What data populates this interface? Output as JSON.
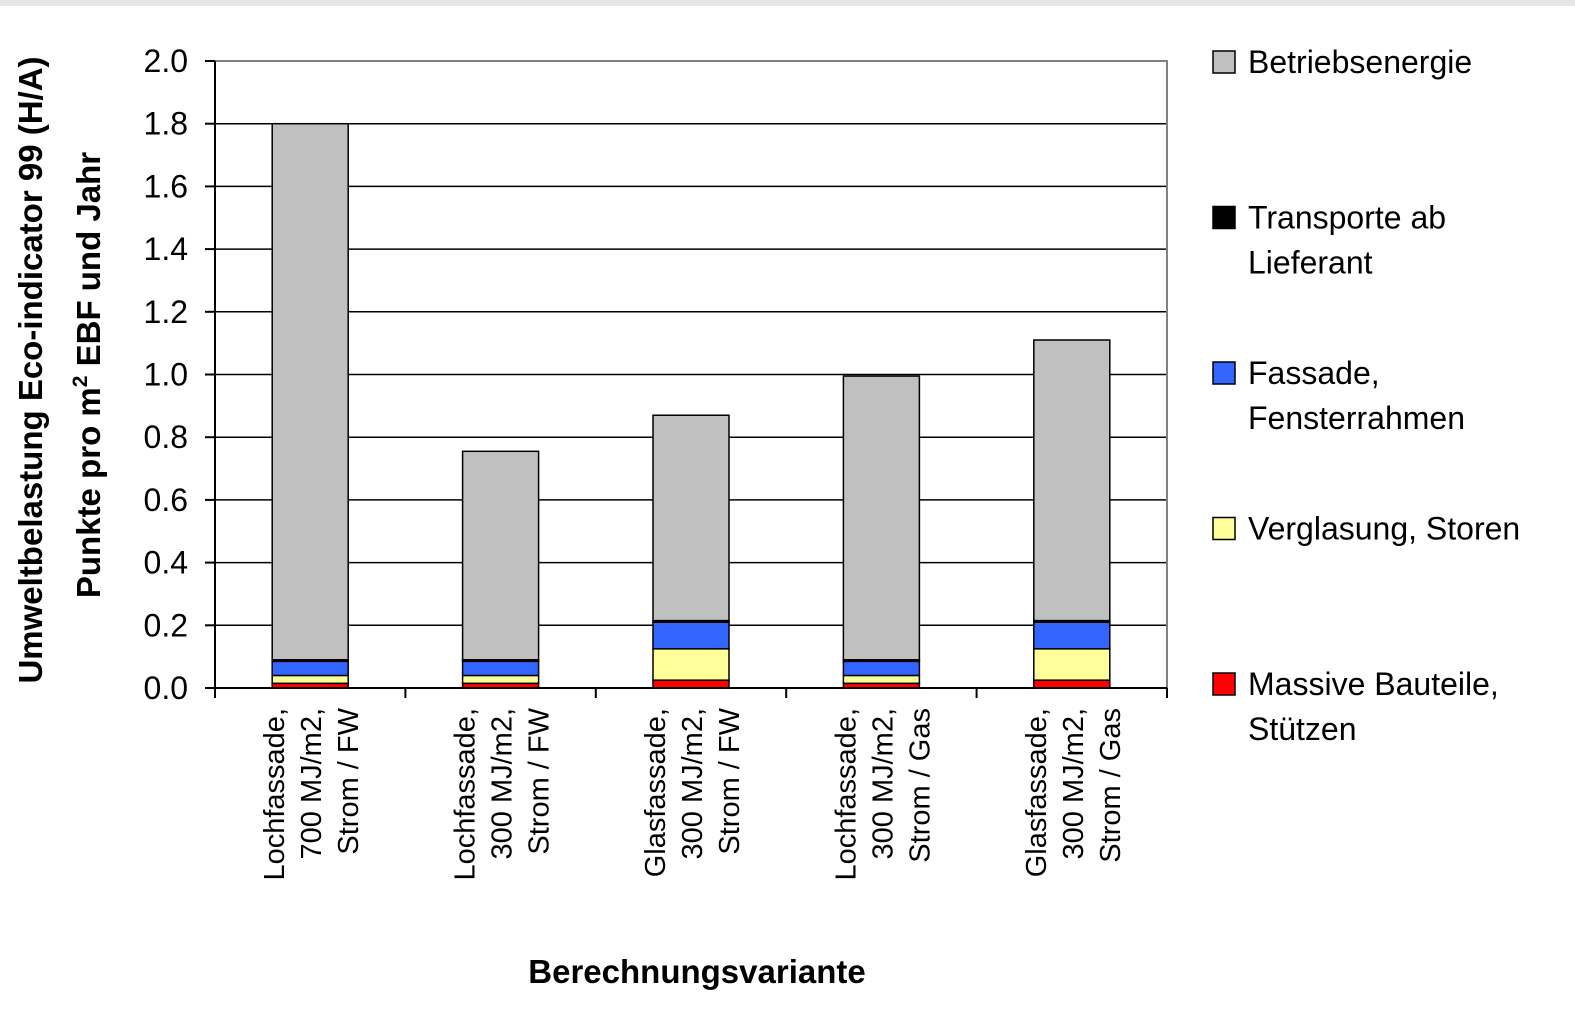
{
  "chart_data": {
    "type": "bar",
    "stacked": true,
    "categories": [
      [
        "Lochfassade,",
        "700 MJ/m2,",
        "Strom / FW"
      ],
      [
        "Lochfassade,",
        "300 MJ/m2,",
        "Strom / FW"
      ],
      [
        "Glasfassade,",
        "300 MJ/m2,",
        "Strom / FW"
      ],
      [
        "Lochfassade,",
        "300 MJ/m2,",
        "Strom / Gas"
      ],
      [
        "Glasfassade,",
        "300 MJ/m2,",
        "Strom / Gas"
      ]
    ],
    "series": [
      {
        "name": "Massive Bauteile, Stützen",
        "legend_lines": [
          "Massive Bauteile,",
          "Stützen"
        ],
        "color": "#ff0000",
        "values": [
          0.015,
          0.015,
          0.025,
          0.015,
          0.025
        ]
      },
      {
        "name": "Verglasung, Storen",
        "legend_lines": [
          "Verglasung, Storen"
        ],
        "color": "#ffff99",
        "values": [
          0.025,
          0.025,
          0.1,
          0.025,
          0.1
        ]
      },
      {
        "name": "Fassade, Fensterrahmen",
        "legend_lines": [
          "Fassade,",
          "Fensterrahmen"
        ],
        "color": "#3366ff",
        "values": [
          0.045,
          0.045,
          0.085,
          0.045,
          0.085
        ]
      },
      {
        "name": "Transporte ab Lieferant",
        "legend_lines": [
          "Transporte ab",
          "Lieferant"
        ],
        "color": "#000000",
        "values": [
          0.005,
          0.005,
          0.005,
          0.005,
          0.005
        ]
      },
      {
        "name": "Betriebsenergie",
        "legend_lines": [
          "Betriebsenergie"
        ],
        "color": "#c0c0c0",
        "values": [
          1.71,
          0.665,
          0.655,
          0.905,
          0.895
        ]
      }
    ],
    "yticks": [
      "0.0",
      "0.2",
      "0.4",
      "0.6",
      "0.8",
      "1.0",
      "1.2",
      "1.4",
      "1.6",
      "1.8",
      "2.0"
    ],
    "ylim": [
      0,
      2.0
    ],
    "ylabel_line1": "Umweltbelastung Eco-indicator 99 (H/A)",
    "ylabel_line2_pre": "Punkte  pro m",
    "ylabel_line2_sup": "2",
    "ylabel_line2_post": " EBF und Jahr",
    "xlabel": "Berechnungsvariante",
    "grid": true,
    "legend_position": "right"
  }
}
